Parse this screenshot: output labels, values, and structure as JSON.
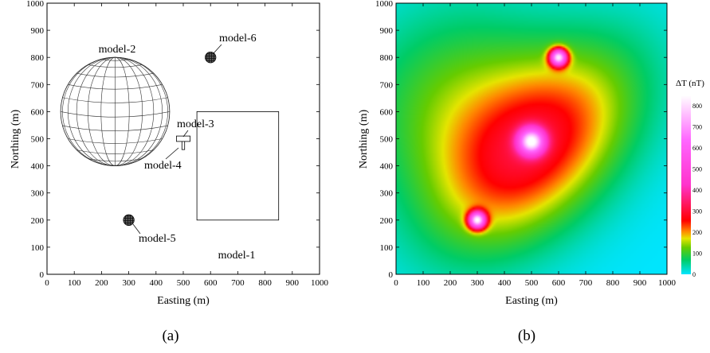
{
  "chart_data": [
    {
      "type": "scatter",
      "panel_label": "(a)",
      "xlabel": "Easting (m)",
      "ylabel": "Northing (m)",
      "xlim": [
        0,
        1000
      ],
      "ylim": [
        0,
        1000
      ],
      "xticks": [
        0,
        100,
        200,
        300,
        400,
        500,
        600,
        700,
        800,
        900,
        1000
      ],
      "yticks": [
        0,
        100,
        200,
        300,
        400,
        500,
        600,
        700,
        800,
        900,
        1000
      ],
      "models": [
        {
          "name": "model-1",
          "shape": "rectangle",
          "x_range": [
            550,
            850
          ],
          "y_range": [
            200,
            600
          ]
        },
        {
          "name": "model-2",
          "shape": "sphere",
          "center": [
            250,
            600
          ],
          "radius": 200
        },
        {
          "name": "model-3",
          "shape": "horizontal-block",
          "x_range": [
            475,
            525
          ],
          "y_range": [
            490,
            510
          ]
        },
        {
          "name": "model-4",
          "shape": "vertical-block",
          "x_range": [
            495,
            505
          ],
          "y_range": [
            460,
            490
          ]
        },
        {
          "name": "model-5",
          "shape": "small-sphere",
          "center": [
            300,
            200
          ],
          "radius": 20
        },
        {
          "name": "model-6",
          "shape": "small-sphere",
          "center": [
            600,
            800
          ],
          "radius": 20
        }
      ]
    },
    {
      "type": "heatmap",
      "panel_label": "(b)",
      "xlabel": "Easting (m)",
      "ylabel": "Northing (m)",
      "xlim": [
        0,
        1000
      ],
      "ylim": [
        0,
        1000
      ],
      "xticks": [
        0,
        100,
        200,
        300,
        400,
        500,
        600,
        700,
        800,
        900,
        1000
      ],
      "yticks": [
        0,
        100,
        200,
        300,
        400,
        500,
        600,
        700,
        800,
        900,
        1000
      ],
      "colorbar": {
        "title": "ΔT (nT)",
        "range": [
          0,
          850
        ],
        "ticks": [
          0,
          100,
          200,
          300,
          400,
          500,
          600,
          700,
          800
        ],
        "colors": [
          "#00e5ff",
          "#00cc66",
          "#66cc00",
          "#e5e500",
          "#ff8800",
          "#ff0000",
          "#ff33cc",
          "#ff66ff",
          "#ffffff"
        ]
      },
      "anomalies": [
        {
          "center": [
            500,
            490
          ],
          "peak": 830
        },
        {
          "center": [
            600,
            800
          ],
          "peak": 820
        },
        {
          "center": [
            300,
            200
          ],
          "peak": 820
        }
      ]
    }
  ]
}
